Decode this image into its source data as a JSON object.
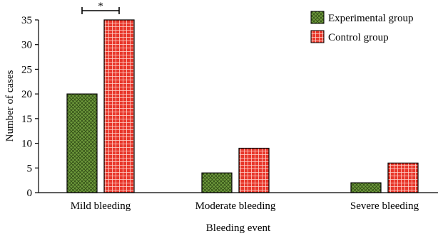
{
  "chart_data": {
    "type": "bar",
    "xlabel": "Bleeding event",
    "ylabel": "Number of cases",
    "categories": [
      "Mild bleeding",
      "Moderate bleeding",
      "Severe bleeding"
    ],
    "ylim": [
      0,
      35
    ],
    "yticks": [
      0,
      5,
      10,
      15,
      20,
      25,
      30,
      35
    ],
    "series": [
      {
        "name": "Experimental group",
        "values": [
          20,
          4,
          2
        ],
        "color": "#6e9a3c",
        "pattern": "crosshatch"
      },
      {
        "name": "Control group",
        "values": [
          35,
          9,
          6
        ],
        "color": "#e8362a",
        "pattern": "grid"
      }
    ],
    "legend_position": "top-right",
    "annotations": [
      {
        "text": "*",
        "category": "Mild bleeding",
        "type": "significance-bracket"
      }
    ],
    "grid": false
  }
}
